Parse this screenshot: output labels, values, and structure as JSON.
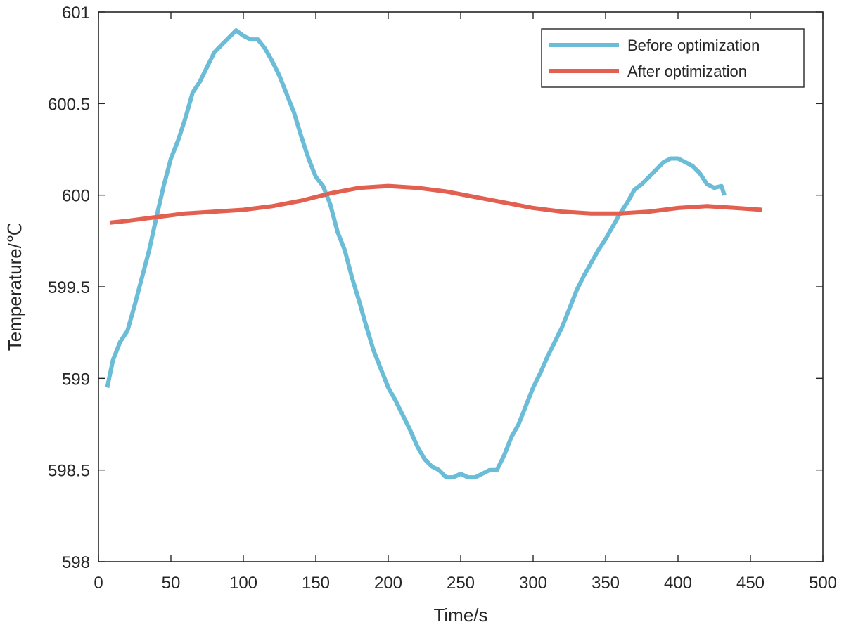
{
  "chart_data": {
    "type": "line",
    "title": "",
    "xlabel": "Time/s",
    "ylabel": "Temperature/℃",
    "xlim": [
      0,
      500
    ],
    "ylim": [
      598,
      601
    ],
    "xticks": [
      0,
      50,
      100,
      150,
      200,
      250,
      300,
      350,
      400,
      450,
      500
    ],
    "yticks": [
      598,
      598.5,
      599,
      599.5,
      600,
      600.5,
      601
    ],
    "ytick_labels": [
      "598",
      "598.5",
      "599",
      "599.5",
      "600",
      "600.5",
      "601"
    ],
    "grid": false,
    "legend_position": "top-right",
    "series": [
      {
        "name": "Before optimization",
        "color": "#6bbcd6",
        "x": [
          6,
          10,
          15,
          20,
          25,
          30,
          35,
          40,
          45,
          50,
          55,
          60,
          65,
          70,
          75,
          80,
          85,
          90,
          95,
          100,
          105,
          110,
          115,
          120,
          125,
          130,
          135,
          140,
          145,
          150,
          155,
          160,
          165,
          170,
          175,
          180,
          185,
          190,
          195,
          200,
          205,
          210,
          215,
          220,
          225,
          230,
          235,
          240,
          245,
          250,
          255,
          260,
          265,
          270,
          275,
          280,
          285,
          290,
          295,
          300,
          305,
          310,
          315,
          320,
          325,
          330,
          335,
          340,
          345,
          350,
          355,
          360,
          365,
          370,
          375,
          380,
          385,
          390,
          395,
          400,
          405,
          410,
          415,
          420,
          425,
          430,
          432
        ],
        "y": [
          598.95,
          599.1,
          599.2,
          599.26,
          599.4,
          599.55,
          599.7,
          599.88,
          600.05,
          600.2,
          600.3,
          600.42,
          600.56,
          600.62,
          600.7,
          600.78,
          600.82,
          600.86,
          600.9,
          600.87,
          600.85,
          600.85,
          600.8,
          600.73,
          600.65,
          600.55,
          600.45,
          600.32,
          600.2,
          600.1,
          600.05,
          599.95,
          599.8,
          599.7,
          599.55,
          599.42,
          599.28,
          599.15,
          599.05,
          598.95,
          598.88,
          598.8,
          598.72,
          598.63,
          598.56,
          598.52,
          598.5,
          598.46,
          598.46,
          598.48,
          598.46,
          598.46,
          598.48,
          598.5,
          598.5,
          598.58,
          598.68,
          598.75,
          598.85,
          598.95,
          599.03,
          599.12,
          599.2,
          599.28,
          599.38,
          599.48,
          599.56,
          599.63,
          599.7,
          599.76,
          599.83,
          599.9,
          599.96,
          600.03,
          600.06,
          600.1,
          600.14,
          600.18,
          600.2,
          600.2,
          600.18,
          600.16,
          600.12,
          600.06,
          600.04,
          600.05,
          600.0
        ]
      },
      {
        "name": "After optimization",
        "color": "#e35f50",
        "x": [
          8,
          20,
          40,
          60,
          80,
          100,
          120,
          140,
          160,
          180,
          200,
          220,
          240,
          260,
          280,
          300,
          320,
          340,
          360,
          380,
          400,
          420,
          440,
          458
        ],
        "y": [
          599.85,
          599.86,
          599.88,
          599.9,
          599.91,
          599.92,
          599.94,
          599.97,
          600.01,
          600.04,
          600.05,
          600.04,
          600.02,
          599.99,
          599.96,
          599.93,
          599.91,
          599.9,
          599.9,
          599.91,
          599.93,
          599.94,
          599.93,
          599.92
        ]
      }
    ]
  }
}
